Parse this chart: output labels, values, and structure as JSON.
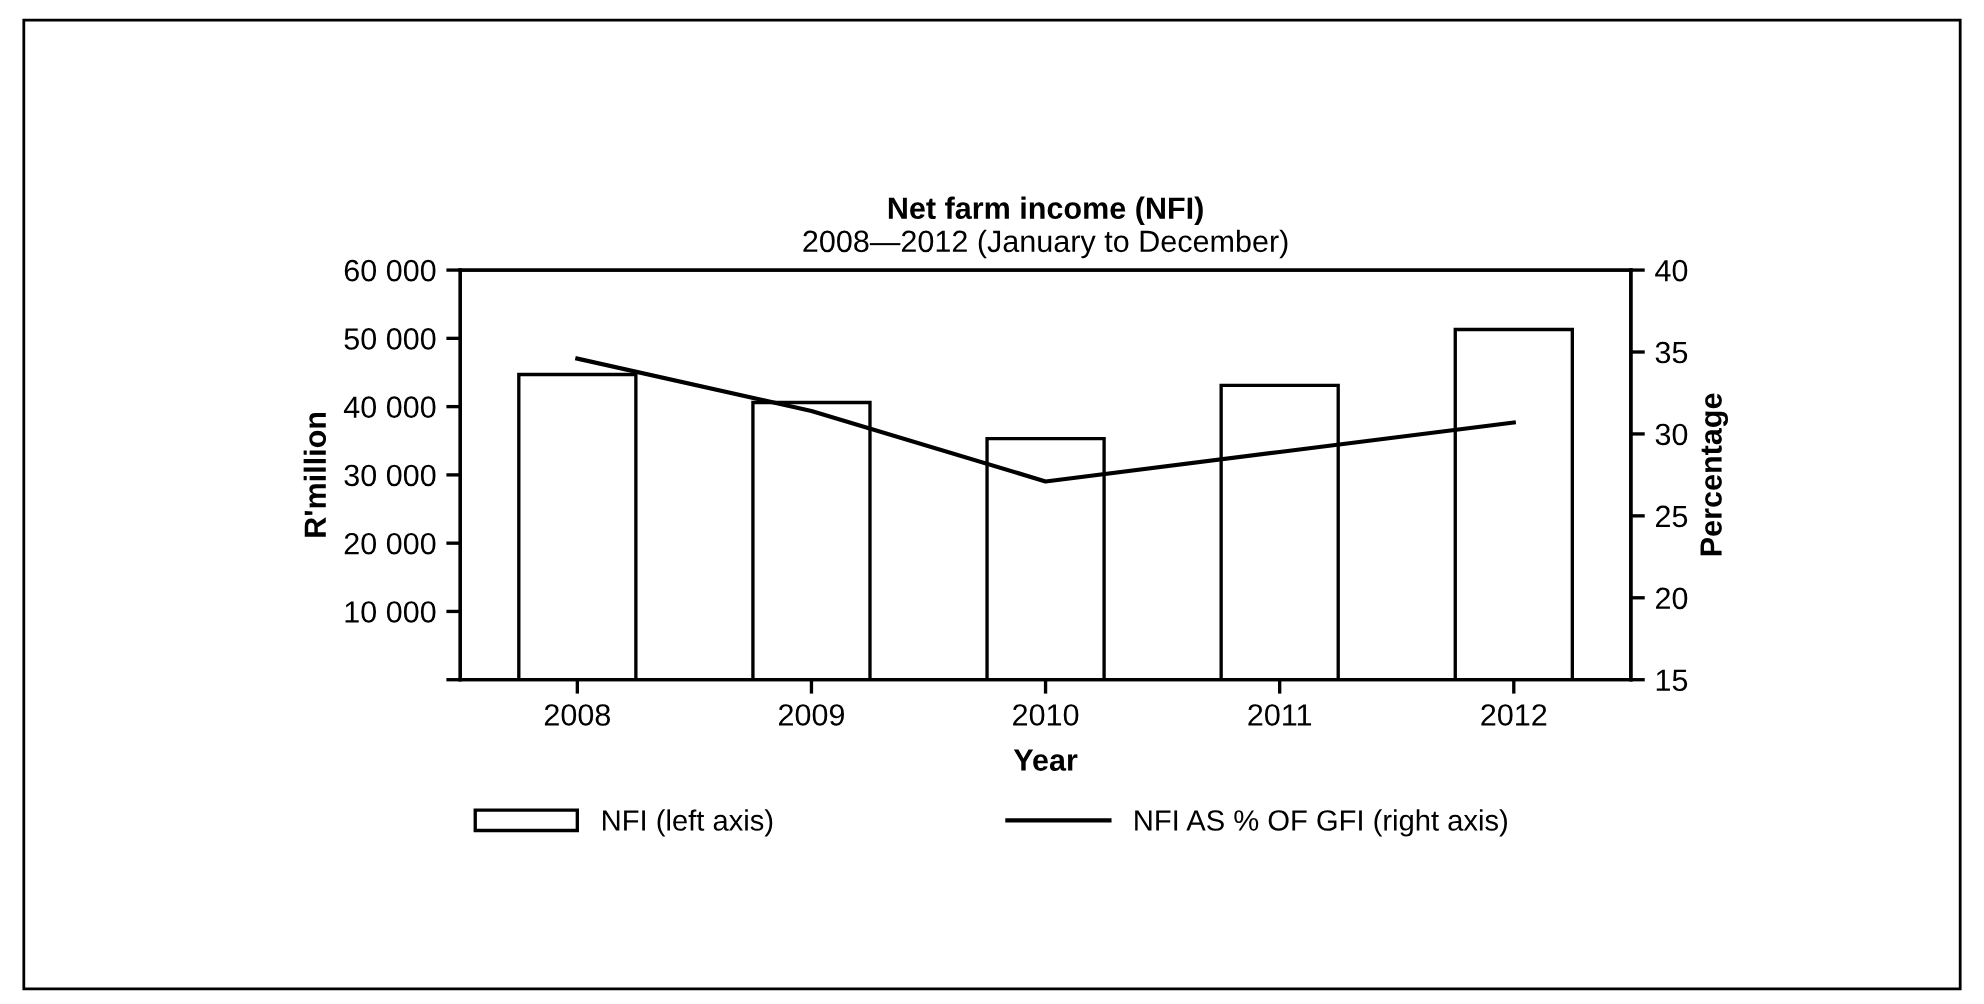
{
  "chart_data": {
    "type": "bar",
    "title": "Net farm income (NFI)",
    "subtitle": "2008—2012 (January to December)",
    "xlabel": "Year",
    "ylabel": "R'million",
    "y2label": "Percentage",
    "categories": [
      "2008",
      "2009",
      "2010",
      "2011",
      "2012"
    ],
    "series": [
      {
        "name": "NFI (left axis)",
        "color": "#ffffff",
        "values": [
          44700,
          40600,
          35300,
          43100,
          51300
        ]
      },
      {
        "name": "NFI AS % OF GFI (right axis)",
        "type": "line",
        "axis": "y2",
        "color": "#000000",
        "values": [
          34.6,
          31.4,
          27.1,
          28.9,
          30.7
        ]
      }
    ],
    "ylim": [
      0,
      60000
    ],
    "yticks": [
      {
        "value": 0,
        "label": null
      },
      {
        "value": 10000,
        "label": "10 000"
      },
      {
        "value": 20000,
        "label": "20 000"
      },
      {
        "value": 30000,
        "label": "30 000"
      },
      {
        "value": 40000,
        "label": "40 000"
      },
      {
        "value": 50000,
        "label": "50 000"
      },
      {
        "value": 60000,
        "label": "60 000"
      }
    ],
    "y2lim": [
      15,
      40
    ],
    "y2ticks": [
      15,
      20,
      25,
      30,
      35,
      40
    ],
    "legend": "bottom",
    "grid": false,
    "marker": "none",
    "line_style": "solid"
  }
}
